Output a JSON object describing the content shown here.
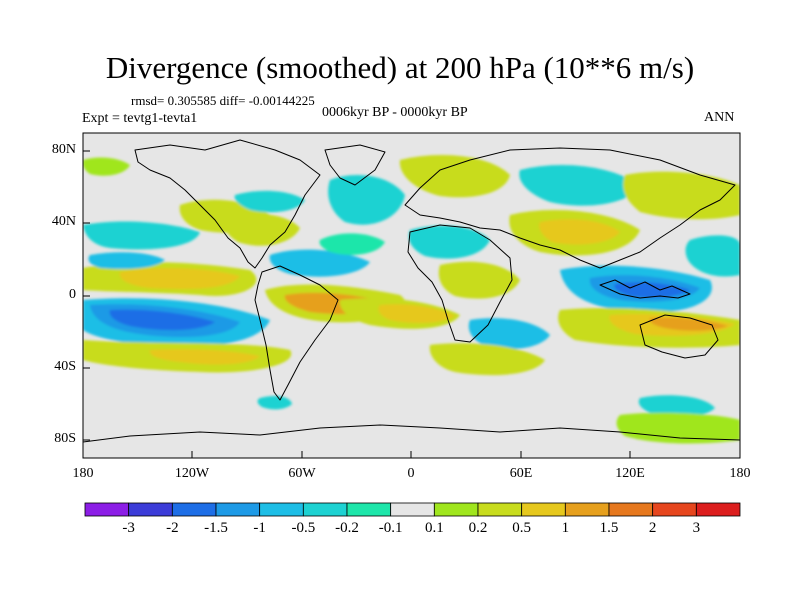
{
  "title": "Divergence (smoothed) at 200 hPa (10**6 m/s)",
  "stats": "rmsd= 0.305585 diff= -0.00144225",
  "period": "0006kyr BP - 0000kyr BP",
  "experiment": "Expt = tevtg1-tevta1",
  "season": "ANN",
  "lat_ticks": [
    "80N",
    "40N",
    "0",
    "40S",
    "80S"
  ],
  "lon_ticks": [
    "180",
    "120W",
    "60W",
    "0",
    "60E",
    "120E",
    "180"
  ],
  "colorbar": {
    "labels": [
      "-3",
      "-2",
      "-1.5",
      "-1",
      "-0.5",
      "-0.2",
      "-0.1",
      "0.1",
      "0.2",
      "0.5",
      "1",
      "1.5",
      "2",
      "3"
    ],
    "colors": [
      "#8c1ee6",
      "#3c3cd8",
      "#1e6ee6",
      "#1e9ae6",
      "#1ebee6",
      "#1ed2d2",
      "#1ee6aa",
      "#e6e6e6",
      "#a0e61e",
      "#c8dc1e",
      "#e6c81e",
      "#e6a01e",
      "#e6781e",
      "#e6461e",
      "#dc1e1e"
    ]
  },
  "field_colors": {
    "neutral": "#e6e6e6",
    "weak_pos": "#a0e61e",
    "pos": "#c8dc1e",
    "mod_pos": "#e6c81e",
    "strong_pos": "#e6a01e",
    "weak_neg": "#1ee6aa",
    "neg": "#1ed2d2",
    "mod_neg": "#1ebee6",
    "strong_neg": "#1e9ae6",
    "very_neg": "#1e6ee6"
  }
}
